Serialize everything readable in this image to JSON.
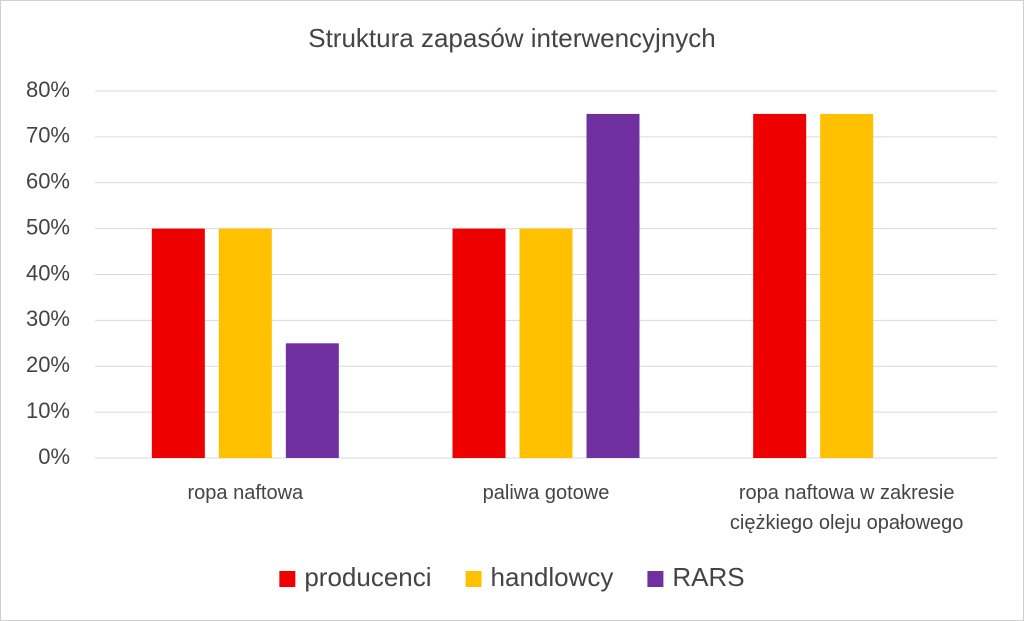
{
  "chart_data": {
    "type": "bar",
    "title": "Struktura zapasów interwencyjnych",
    "categories": [
      "ropa naftowa",
      "paliwa gotowe",
      "ropa naftowa w zakresie ciężkiego oleju opałowego"
    ],
    "series": [
      {
        "name": "producenci",
        "color": "#ee0000",
        "values": [
          50,
          50,
          75
        ]
      },
      {
        "name": "handlowcy",
        "color": "#ffc000",
        "values": [
          50,
          50,
          75
        ]
      },
      {
        "name": "RARS",
        "color": "#7030a0",
        "values": [
          25,
          75,
          null
        ]
      }
    ],
    "ylim": [
      0,
      80
    ],
    "yticks": [
      {
        "value": 0,
        "label": "0%"
      },
      {
        "value": 10,
        "label": "10%"
      },
      {
        "value": 20,
        "label": "20%"
      },
      {
        "value": 30,
        "label": "30%"
      },
      {
        "value": 40,
        "label": "40%"
      },
      {
        "value": 50,
        "label": "50%"
      },
      {
        "value": 60,
        "label": "60%"
      },
      {
        "value": 70,
        "label": "70%"
      },
      {
        "value": 80,
        "label": "80%"
      }
    ],
    "grid": true,
    "legend": "bottom"
  }
}
